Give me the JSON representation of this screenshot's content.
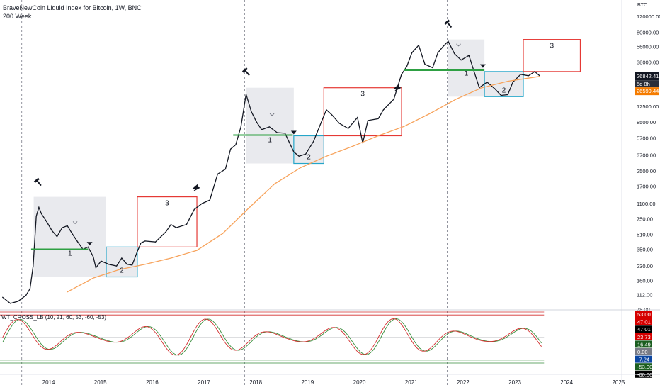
{
  "header": {
    "title": "BraveNewCoin Liquid Index for Bitcoin, 1W, BNC",
    "ma_label": "200 Week",
    "currency": "BTC"
  },
  "price_readout": {
    "last": "26842.41",
    "countdown": "5d 8h",
    "ma_value": "26599.44"
  },
  "colors": {
    "up": "#131722",
    "ma": "#f7a35c",
    "support": "#2ea043",
    "box_red": "#e53935",
    "box_cyan": "#26a6c9",
    "shade": "#e9eaee",
    "wt1": "#d32f2f",
    "wt2": "#388e3c"
  },
  "icons": [
    "hammer-icon",
    "arrow-up-icon",
    "triangle-down-icon",
    "check-icon"
  ],
  "indicator": {
    "title": "WT_CROSS_LB (10, 21, 60, 53, -60, -53)",
    "scale": [
      "53.00",
      "47.01",
      "47.01",
      "23.73",
      "16.49",
      "0.00",
      "-7.24",
      "-53.00",
      "-60.00"
    ]
  },
  "chart_data": {
    "type": "line",
    "title": "BraveNewCoin Liquid Index for Bitcoin, 1W, BNC",
    "log_scale": true,
    "ylim": [
      78,
      180000
    ],
    "xlim": [
      2013.2,
      2025.2
    ],
    "grid": false,
    "ytick_labels": [
      "120000.00",
      "80000.00",
      "56000.00",
      "38000.00",
      "26842.41",
      "12500.00",
      "8500.00",
      "5700.00",
      "3700.00",
      "2500.00",
      "1700.00",
      "1100.00",
      "750.00",
      "510.00",
      "350.00",
      "230.00",
      "160.00",
      "112.00",
      "78.00"
    ],
    "xtick_labels": [
      "2014",
      "2015",
      "2016",
      "2017",
      "2018",
      "2019",
      "2020",
      "2021",
      "2022",
      "2023",
      "2024",
      "2025"
    ],
    "halving_lines": [
      2013.62,
      2017.92,
      2021.83
    ],
    "series": [
      {
        "name": "BTC",
        "points": [
          [
            2013.25,
            105
          ],
          [
            2013.4,
            90
          ],
          [
            2013.55,
            95
          ],
          [
            2013.7,
            110
          ],
          [
            2013.78,
            130
          ],
          [
            2013.84,
            230
          ],
          [
            2013.9,
            800
          ],
          [
            2013.95,
            1000
          ],
          [
            2014.0,
            850
          ],
          [
            2014.1,
            700
          ],
          [
            2014.2,
            560
          ],
          [
            2014.3,
            480
          ],
          [
            2014.4,
            600
          ],
          [
            2014.5,
            630
          ],
          [
            2014.6,
            510
          ],
          [
            2014.7,
            420
          ],
          [
            2014.8,
            350
          ],
          [
            2014.9,
            370
          ],
          [
            2015.0,
            290
          ],
          [
            2015.05,
            220
          ],
          [
            2015.15,
            260
          ],
          [
            2015.3,
            240
          ],
          [
            2015.45,
            230
          ],
          [
            2015.55,
            280
          ],
          [
            2015.65,
            240
          ],
          [
            2015.75,
            235
          ],
          [
            2015.85,
            330
          ],
          [
            2015.92,
            410
          ],
          [
            2016.0,
            430
          ],
          [
            2016.2,
            420
          ],
          [
            2016.4,
            540
          ],
          [
            2016.5,
            650
          ],
          [
            2016.6,
            600
          ],
          [
            2016.8,
            650
          ],
          [
            2016.95,
            950
          ],
          [
            2017.1,
            1100
          ],
          [
            2017.25,
            1200
          ],
          [
            2017.4,
            2300
          ],
          [
            2017.55,
            2600
          ],
          [
            2017.65,
            4300
          ],
          [
            2017.75,
            4800
          ],
          [
            2017.85,
            7500
          ],
          [
            2017.95,
            17000
          ],
          [
            2018.05,
            11000
          ],
          [
            2018.15,
            8500
          ],
          [
            2018.25,
            7000
          ],
          [
            2018.4,
            7500
          ],
          [
            2018.55,
            6500
          ],
          [
            2018.7,
            6400
          ],
          [
            2018.87,
            4000
          ],
          [
            2018.97,
            3600
          ],
          [
            2019.1,
            3800
          ],
          [
            2019.25,
            5200
          ],
          [
            2019.42,
            9000
          ],
          [
            2019.5,
            11500
          ],
          [
            2019.6,
            10200
          ],
          [
            2019.75,
            8200
          ],
          [
            2019.92,
            7200
          ],
          [
            2020.1,
            9500
          ],
          [
            2020.2,
            5000
          ],
          [
            2020.3,
            8800
          ],
          [
            2020.5,
            9200
          ],
          [
            2020.6,
            11500
          ],
          [
            2020.8,
            15000
          ],
          [
            2020.95,
            28000
          ],
          [
            2021.05,
            34000
          ],
          [
            2021.15,
            48000
          ],
          [
            2021.28,
            58000
          ],
          [
            2021.4,
            36000
          ],
          [
            2021.55,
            33000
          ],
          [
            2021.65,
            48000
          ],
          [
            2021.75,
            56000
          ],
          [
            2021.85,
            64000
          ],
          [
            2021.97,
            47000
          ],
          [
            2022.1,
            40000
          ],
          [
            2022.25,
            45000
          ],
          [
            2022.35,
            30000
          ],
          [
            2022.45,
            20000
          ],
          [
            2022.6,
            23000
          ],
          [
            2022.75,
            19500
          ],
          [
            2022.87,
            16500
          ],
          [
            2023.0,
            16800
          ],
          [
            2023.1,
            23000
          ],
          [
            2023.25,
            28000
          ],
          [
            2023.4,
            27000
          ],
          [
            2023.52,
            30000
          ],
          [
            2023.62,
            26842
          ]
        ]
      },
      {
        "name": "200 Week",
        "points": [
          [
            2014.5,
            120
          ],
          [
            2015.0,
            170
          ],
          [
            2015.5,
            210
          ],
          [
            2016.0,
            240
          ],
          [
            2016.5,
            280
          ],
          [
            2017.0,
            340
          ],
          [
            2017.5,
            520
          ],
          [
            2018.0,
            980
          ],
          [
            2018.5,
            1800
          ],
          [
            2019.0,
            2700
          ],
          [
            2019.5,
            3600
          ],
          [
            2020.0,
            4600
          ],
          [
            2020.5,
            6000
          ],
          [
            2021.0,
            7600
          ],
          [
            2021.5,
            10500
          ],
          [
            2022.0,
            15000
          ],
          [
            2022.5,
            20000
          ],
          [
            2023.0,
            23500
          ],
          [
            2023.62,
            26599
          ]
        ]
      }
    ],
    "zones": [
      {
        "label": "1",
        "x": [
          2013.85,
          2015.25
        ],
        "y": [
          175,
          1300
        ]
      },
      {
        "label": "2",
        "x": [
          2015.25,
          2015.85
        ],
        "y": [
          175,
          370
        ]
      },
      {
        "label": "3",
        "x": [
          2015.85,
          2017.0
        ],
        "y": [
          370,
          1300
        ]
      },
      {
        "label": "1",
        "x": [
          2017.95,
          2018.87
        ],
        "y": [
          3000,
          20000
        ]
      },
      {
        "label": "2",
        "x": [
          2018.87,
          2019.45
        ],
        "y": [
          3000,
          6000
        ]
      },
      {
        "label": "3",
        "x": [
          2019.45,
          2020.95
        ],
        "y": [
          6000,
          20000
        ]
      },
      {
        "label": "1",
        "x": [
          2021.85,
          2022.55
        ],
        "y": [
          16000,
          67000
        ]
      },
      {
        "label": "2",
        "x": [
          2022.55,
          2023.3
        ],
        "y": [
          16000,
          30000
        ]
      },
      {
        "label": "3",
        "x": [
          2023.3,
          2024.4
        ],
        "y": [
          30000,
          67000
        ]
      }
    ],
    "support_levels": [
      {
        "value": 350,
        "x": [
          2013.8,
          2014.9
        ]
      },
      {
        "value": 6100,
        "x": [
          2017.7,
          2018.85
        ]
      },
      {
        "value": 31000,
        "x": [
          2021.0,
          2022.55
        ]
      }
    ],
    "ylabel": "",
    "xlabel": ""
  }
}
